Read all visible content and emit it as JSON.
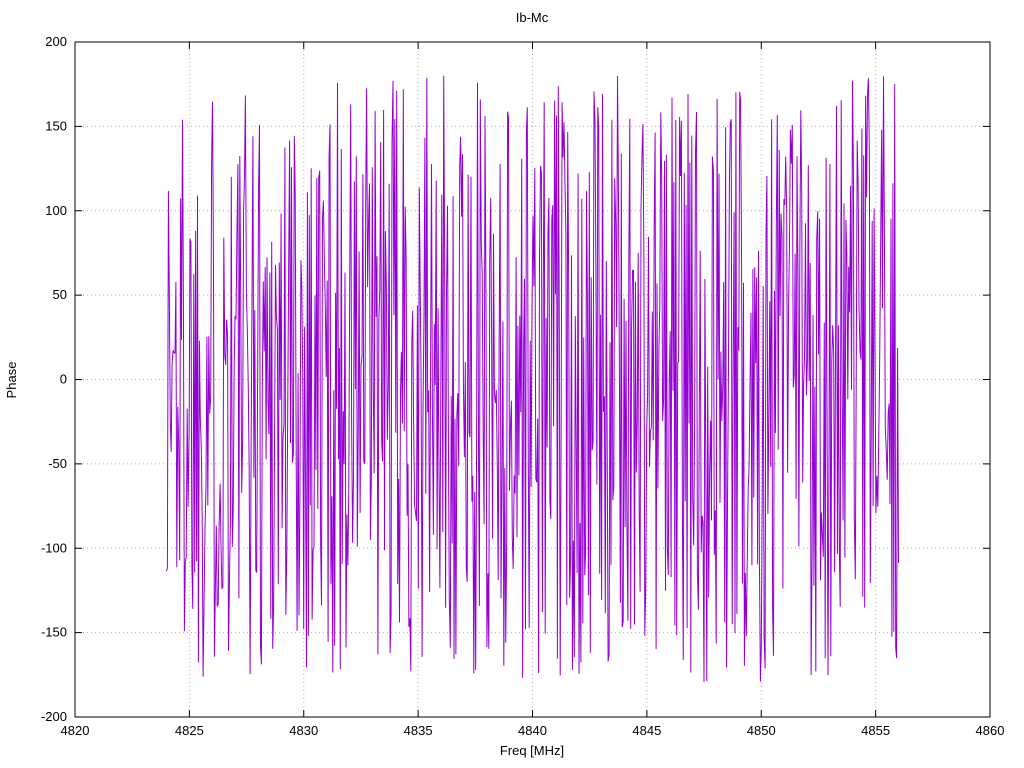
{
  "chart_data": {
    "type": "line",
    "title": "Ib-Mc",
    "xlabel": "Freq [MHz]",
    "ylabel": "Phase",
    "xlim": [
      4820,
      4860
    ],
    "ylim": [
      -200,
      200
    ],
    "xticks": [
      4820,
      4825,
      4830,
      4835,
      4840,
      4845,
      4850,
      4855,
      4860
    ],
    "yticks": [
      -200,
      -150,
      -100,
      -50,
      0,
      50,
      100,
      150,
      200
    ],
    "grid": true,
    "grid_style": "dotted",
    "grid_color": "#b0b0b0",
    "border_color": "#000000",
    "background_color": "#ffffff",
    "legend": false,
    "series": [
      {
        "name": "Ib-Mc phase",
        "color": "#9400d3",
        "line_width": 1,
        "x_start": 4824.0,
        "x_end": 4856.0,
        "n_points": 780,
        "y_distribution": "uniform-random-phase",
        "y_min": -180,
        "y_max": 180,
        "prng": "mulberry32",
        "seed": 1337
      }
    ]
  }
}
